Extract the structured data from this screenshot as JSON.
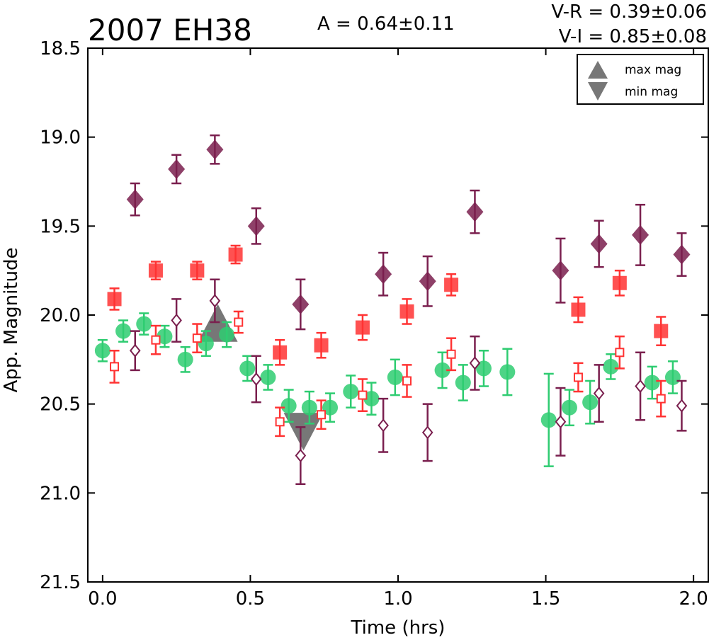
{
  "chart_data": {
    "type": "scatter",
    "title": "2007 EH38",
    "annotations": {
      "amplitude": "A  = 0.64±0.11",
      "v_r": "V-R = 0.39±0.06",
      "v_i": "V-I  = 0.85±0.08"
    },
    "xlabel": "Time (hrs)",
    "ylabel": "App. Magnitude",
    "xlim": [
      -0.05,
      2.05
    ],
    "ylim": [
      21.5,
      18.5
    ],
    "y_inverted": true,
    "xticks": [
      "0.0",
      "0.5",
      "1.0",
      "1.5",
      "2.0"
    ],
    "xtick_values": [
      0.0,
      0.5,
      1.0,
      1.5,
      2.0
    ],
    "yticks": [
      "18.5",
      "19.0",
      "19.5",
      "20.0",
      "20.5",
      "21.0",
      "21.5"
    ],
    "ytick_values": [
      18.5,
      19.0,
      19.5,
      20.0,
      20.5,
      21.0,
      21.5
    ],
    "legend": {
      "position": "top-right",
      "entries": [
        "max mag",
        "min mag"
      ]
    },
    "colors": {
      "green": "#2ecc71",
      "red": "#ff3333",
      "purple": "#7a1f4e",
      "marker_gray": "#777777"
    },
    "series": [
      {
        "marker": "circle-filled",
        "color": "#2ecc71",
        "points": [
          [
            0.0,
            20.2,
            0.06
          ],
          [
            0.07,
            20.09,
            0.06
          ],
          [
            0.14,
            20.05,
            0.06
          ],
          [
            0.21,
            20.12,
            0.06
          ],
          [
            0.28,
            20.25,
            0.07
          ],
          [
            0.35,
            20.16,
            0.07
          ],
          [
            0.42,
            20.11,
            0.07
          ],
          [
            0.49,
            20.3,
            0.07
          ],
          [
            0.56,
            20.35,
            0.07
          ],
          [
            0.63,
            20.51,
            0.09
          ],
          [
            0.7,
            20.52,
            0.09
          ],
          [
            0.77,
            20.52,
            0.08
          ],
          [
            0.84,
            20.43,
            0.09
          ],
          [
            0.91,
            20.47,
            0.09
          ],
          [
            0.99,
            20.35,
            0.1
          ],
          [
            1.15,
            20.31,
            0.1
          ],
          [
            1.22,
            20.38,
            0.1
          ],
          [
            1.29,
            20.3,
            0.1
          ],
          [
            1.37,
            20.32,
            0.13
          ],
          [
            1.51,
            20.59,
            0.26
          ],
          [
            1.58,
            20.52,
            0.1
          ],
          [
            1.65,
            20.49,
            0.12
          ],
          [
            1.72,
            20.29,
            0.07
          ],
          [
            1.86,
            20.38,
            0.09
          ],
          [
            1.93,
            20.35,
            0.09
          ]
        ]
      },
      {
        "marker": "square-filled",
        "color": "#ff3333",
        "points": [
          [
            0.04,
            19.91,
            0.06
          ],
          [
            0.18,
            19.75,
            0.05
          ],
          [
            0.32,
            19.75,
            0.05
          ],
          [
            0.45,
            19.66,
            0.05
          ],
          [
            0.6,
            20.21,
            0.07
          ],
          [
            0.74,
            20.17,
            0.07
          ],
          [
            0.88,
            20.07,
            0.07
          ],
          [
            1.03,
            19.98,
            0.07
          ],
          [
            1.18,
            19.83,
            0.06
          ],
          [
            1.61,
            19.97,
            0.07
          ],
          [
            1.75,
            19.82,
            0.07
          ],
          [
            1.89,
            20.09,
            0.08
          ]
        ]
      },
      {
        "marker": "square-open",
        "color": "#ff3333",
        "points": [
          [
            0.04,
            20.29,
            0.09
          ],
          [
            0.18,
            20.14,
            0.08
          ],
          [
            0.32,
            20.13,
            0.08
          ],
          [
            0.46,
            20.04,
            0.06
          ],
          [
            0.6,
            20.6,
            0.08
          ],
          [
            0.74,
            20.56,
            0.08
          ],
          [
            0.88,
            20.45,
            0.09
          ],
          [
            1.03,
            20.37,
            0.09
          ],
          [
            1.18,
            20.22,
            0.09
          ],
          [
            1.61,
            20.35,
            0.08
          ],
          [
            1.75,
            20.21,
            0.09
          ],
          [
            1.89,
            20.47,
            0.1
          ]
        ]
      },
      {
        "marker": "diamond-filled",
        "color": "#7a1f4e",
        "points": [
          [
            0.11,
            19.35,
            0.09
          ],
          [
            0.25,
            19.18,
            0.08
          ],
          [
            0.38,
            19.07,
            0.08
          ],
          [
            0.52,
            19.5,
            0.1
          ],
          [
            0.67,
            19.94,
            0.14
          ],
          [
            0.95,
            19.77,
            0.12
          ],
          [
            1.1,
            19.81,
            0.14
          ],
          [
            1.26,
            19.42,
            0.12
          ],
          [
            1.55,
            19.75,
            0.18
          ],
          [
            1.68,
            19.6,
            0.13
          ],
          [
            1.82,
            19.55,
            0.17
          ],
          [
            1.96,
            19.66,
            0.12
          ]
        ]
      },
      {
        "marker": "diamond-open",
        "color": "#7a1f4e",
        "points": [
          [
            0.11,
            20.2,
            0.11
          ],
          [
            0.25,
            20.03,
            0.12
          ],
          [
            0.38,
            19.92,
            0.12
          ],
          [
            0.52,
            20.36,
            0.13
          ],
          [
            0.67,
            20.79,
            0.16
          ],
          [
            0.95,
            20.62,
            0.15
          ],
          [
            1.1,
            20.66,
            0.16
          ],
          [
            1.26,
            20.27,
            0.15
          ],
          [
            1.55,
            20.6,
            0.19
          ],
          [
            1.68,
            20.44,
            0.16
          ],
          [
            1.82,
            20.4,
            0.19
          ],
          [
            1.96,
            20.51,
            0.14
          ]
        ]
      }
    ],
    "extrema_markers": [
      {
        "type": "max mag",
        "x": 0.39,
        "y": 20.05
      },
      {
        "type": "min mag",
        "x": 0.68,
        "y": 20.65
      }
    ]
  }
}
